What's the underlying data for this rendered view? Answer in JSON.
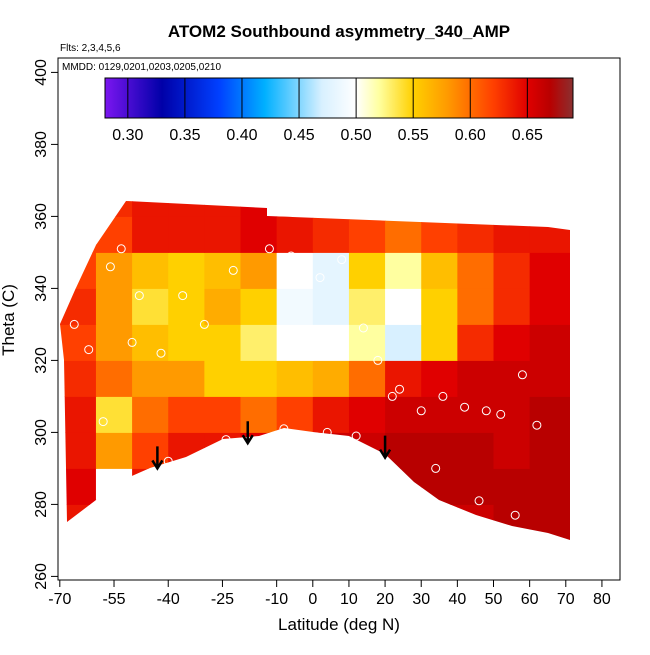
{
  "chart_data": {
    "type": "heatmap",
    "title": "ATOM2 Southbound asymmetry_340_AMP",
    "subtitle": "Flts: 2,3,4,5,6",
    "annotation": "MMDD: 0129,0201,0203,0205,0210",
    "x_label": "Latitude (deg N)",
    "y_label": "Theta (C)",
    "xlim": [
      -70.5,
      85
    ],
    "ylim": [
      259,
      404
    ],
    "xticks": [
      -70,
      -55,
      -40,
      -25,
      -10,
      0,
      10,
      20,
      30,
      40,
      50,
      60,
      70,
      80
    ],
    "yticks": [
      260,
      280,
      300,
      320,
      340,
      360,
      380,
      400
    ],
    "x_bins": [
      -70,
      -60,
      -50,
      -40,
      -30,
      -20,
      -10,
      0,
      10,
      20,
      30,
      40,
      50,
      60,
      72
    ],
    "y_bins": [
      270,
      280,
      290,
      300,
      310,
      320,
      330,
      340,
      350,
      360,
      365
    ],
    "z": [
      [
        0.64,
        0.63,
        0.64,
        0.64,
        0.64,
        0.65,
        0.65,
        0.65,
        0.66,
        0.66,
        0.66,
        0.66,
        0.67,
        0.67
      ],
      [
        0.65,
        0.5,
        0.64,
        0.64,
        0.64,
        0.65,
        0.65,
        0.66,
        0.66,
        0.67,
        0.67,
        0.67,
        0.67,
        0.67
      ],
      [
        0.64,
        0.58,
        0.62,
        0.64,
        0.64,
        0.65,
        0.66,
        0.66,
        0.66,
        0.67,
        0.67,
        0.67,
        0.66,
        0.67
      ],
      [
        0.64,
        0.54,
        0.6,
        0.62,
        0.62,
        0.6,
        0.62,
        0.64,
        0.65,
        0.66,
        0.66,
        0.66,
        0.66,
        0.67
      ],
      [
        0.63,
        0.6,
        0.58,
        0.58,
        0.55,
        0.55,
        0.56,
        0.57,
        0.6,
        0.64,
        0.65,
        0.66,
        0.66,
        0.66
      ],
      [
        0.62,
        0.58,
        0.56,
        0.55,
        0.55,
        0.53,
        0.5,
        0.5,
        0.52,
        0.47,
        0.55,
        0.63,
        0.65,
        0.66
      ],
      [
        0.63,
        0.58,
        0.54,
        0.55,
        0.57,
        0.55,
        0.49,
        0.48,
        0.53,
        0.5,
        0.55,
        0.6,
        0.63,
        0.65
      ],
      [
        0.62,
        0.58,
        0.56,
        0.55,
        0.56,
        0.58,
        0.5,
        0.48,
        0.55,
        0.52,
        0.56,
        0.6,
        0.63,
        0.65
      ],
      [
        0.62,
        0.62,
        0.64,
        0.64,
        0.64,
        0.65,
        0.64,
        0.63,
        0.62,
        0.6,
        0.62,
        0.63,
        0.64,
        0.64
      ],
      [
        0.62,
        0.63,
        0.64,
        0.64,
        0.64,
        0.65,
        0.64,
        0.64,
        0.64,
        0.64,
        0.64,
        0.64,
        0.64,
        0.64
      ]
    ],
    "colorscale": [
      [
        0.28,
        "#7b16f0"
      ],
      [
        0.33,
        "#0000a8"
      ],
      [
        0.38,
        "#0040ff"
      ],
      [
        0.42,
        "#00b0ff"
      ],
      [
        0.47,
        "#d8f0ff"
      ],
      [
        0.5,
        "#ffffff"
      ],
      [
        0.52,
        "#ffffa0"
      ],
      [
        0.55,
        "#ffd000"
      ],
      [
        0.58,
        "#ff9a00"
      ],
      [
        0.62,
        "#ff4000"
      ],
      [
        0.65,
        "#e00000"
      ],
      [
        0.67,
        "#b80000"
      ],
      [
        0.69,
        "#8b3030"
      ]
    ],
    "colorbar_lim": [
      0.28,
      0.69
    ],
    "colorbar_ticks": [
      {
        "value": 0.3,
        "label": "0.30"
      },
      0.35,
      {
        "value": 0.4,
        "label": "0.40"
      },
      0.45,
      {
        "value": 0.5,
        "label": "0.50"
      },
      0.55,
      {
        "value": 0.6,
        "label": "0.60"
      },
      0.65
    ],
    "points": {
      "x": [
        -66,
        -62,
        -56,
        -53,
        -48,
        -42,
        -36,
        -30,
        -22,
        -12,
        -6,
        2,
        8,
        14,
        18,
        24,
        30,
        36,
        42,
        48,
        52,
        58,
        62,
        -58,
        -50,
        -40,
        -24,
        -8,
        4,
        12,
        22,
        34,
        46,
        56
      ],
      "y": [
        330,
        323,
        346,
        351,
        338,
        322,
        338,
        330,
        345,
        351,
        349,
        343,
        348,
        329,
        320,
        312,
        306,
        310,
        307,
        306,
        305,
        316,
        302,
        303,
        325,
        292,
        298,
        301,
        300,
        299,
        310,
        290,
        281,
        277
      ]
    },
    "arrows": {
      "x": [
        -43,
        -18,
        20
      ],
      "y": [
        290,
        297,
        293
      ]
    }
  }
}
